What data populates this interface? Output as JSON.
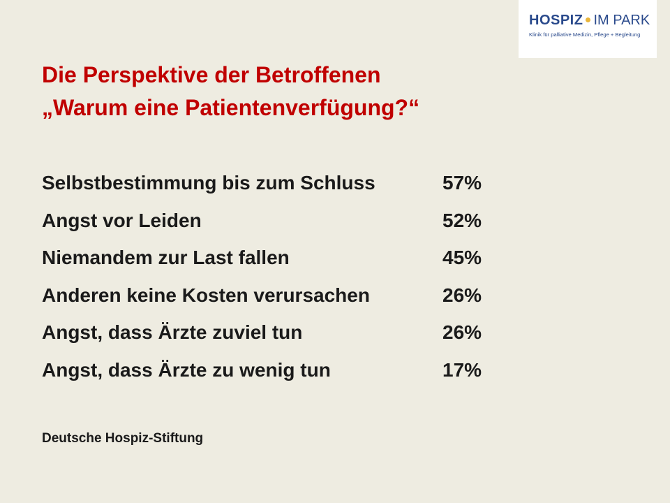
{
  "logo": {
    "word_bold": "HOSPIZ",
    "word_light": "IM PARK",
    "tagline": "Klinik für palliative Medizin, Pflege + Begleitung"
  },
  "title": {
    "line1": "Die Perspektive der Betroffenen",
    "line2": "„Warum eine Patientenverfügung?“"
  },
  "rows": [
    {
      "label": "Selbstbestimmung bis zum Schluss",
      "value": "57%"
    },
    {
      "label": "Angst vor Leiden",
      "value": "52%"
    },
    {
      "label": "Niemandem zur Last fallen",
      "value": "45%"
    },
    {
      "label": "Anderen keine Kosten verursachen",
      "value": "26%"
    },
    {
      "label": "Angst, dass Ärzte zuviel tun",
      "value": "26%"
    },
    {
      "label": "Angst, dass Ärzte zu wenig tun",
      "value": "17%"
    }
  ],
  "source": "Deutsche Hospiz-Stiftung",
  "colors": {
    "background": "#EEECE1",
    "title": "#C00000",
    "logo_blue": "#2A4A8C",
    "logo_dot": "#E9B53A"
  }
}
